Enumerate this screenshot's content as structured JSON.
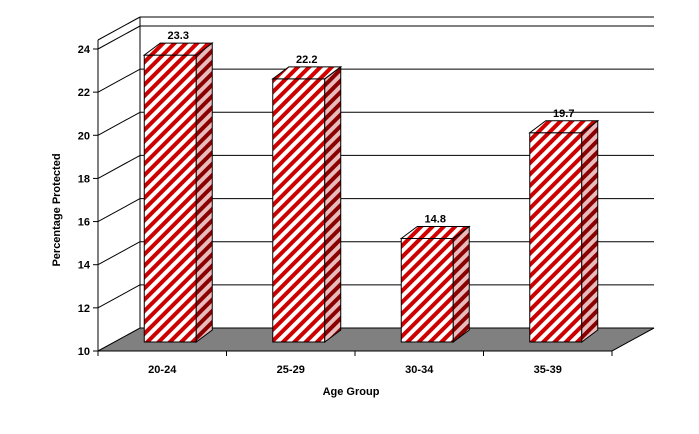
{
  "chart_data": {
    "type": "bar",
    "categories": [
      "20-24",
      "25-29",
      "30-34",
      "35-39"
    ],
    "values": [
      23.3,
      22.2,
      14.8,
      19.7
    ],
    "data_labels": [
      "23.3",
      "22.2",
      "14.8",
      "19.7"
    ],
    "title": "",
    "xlabel": "Age Group",
    "ylabel": "Percentage Protected",
    "ylim": [
      10,
      24
    ],
    "yticks": [
      10,
      12,
      14,
      16,
      18,
      20,
      22,
      24
    ],
    "grid": true,
    "legend": "none",
    "style": "3d-hatched",
    "colors": {
      "bar_stripe": "#cc0000",
      "bar_face_bg": "#ffffff",
      "floor": "#808080"
    }
  }
}
